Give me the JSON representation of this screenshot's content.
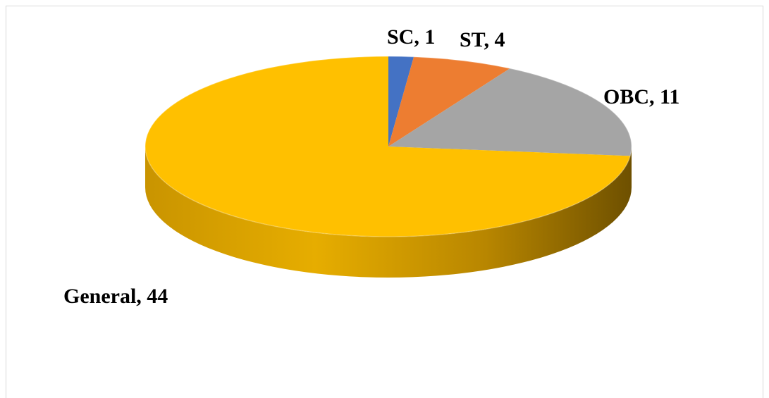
{
  "chart_data": {
    "type": "pie",
    "title": "",
    "slices": [
      {
        "label": "SC, 1",
        "name": "SC",
        "value": 1,
        "color": "#4472c4"
      },
      {
        "label": "ST, 4",
        "name": "ST",
        "value": 4,
        "color": "#ed7d31"
      },
      {
        "label": "OBC, 11",
        "name": "OBC",
        "value": 11,
        "color": "#a5a5a5"
      },
      {
        "label": "General, 44",
        "name": "General",
        "value": 44,
        "color": "#ffc000"
      }
    ],
    "style": "3d",
    "legend": "none",
    "data_labels": "outside"
  }
}
